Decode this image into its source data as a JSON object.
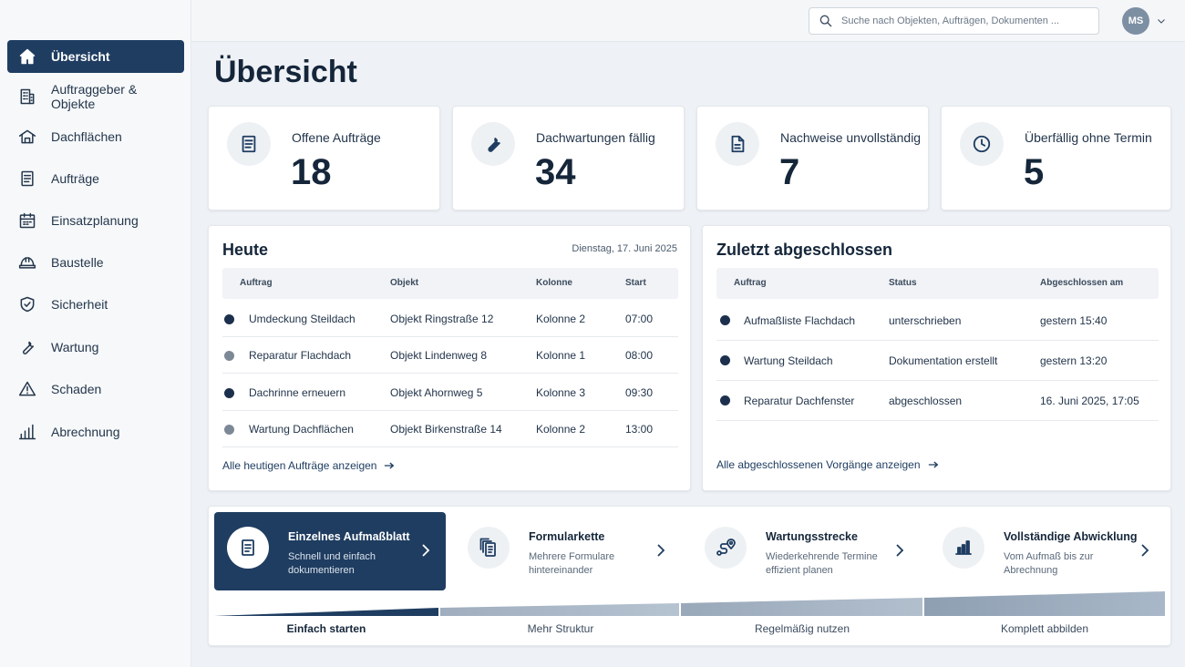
{
  "sidebar": {
    "items": [
      {
        "label": "Übersicht",
        "icon": "home-icon",
        "active": true
      },
      {
        "label": "Auftraggeber & Objekte",
        "icon": "building-icon"
      },
      {
        "label": "Dachflächen",
        "icon": "roof-icon"
      },
      {
        "label": "Aufträge",
        "icon": "document-icon"
      },
      {
        "label": "Einsatzplanung",
        "icon": "calendar-icon"
      },
      {
        "label": "Baustelle",
        "icon": "helmet-icon"
      },
      {
        "label": "Sicherheit",
        "icon": "shield-icon"
      },
      {
        "label": "Wartung",
        "icon": "wrench-icon"
      },
      {
        "label": "Schaden",
        "icon": "warning-icon"
      },
      {
        "label": "Abrechnung",
        "icon": "bar-chart-icon"
      }
    ]
  },
  "header": {
    "search_placeholder": "Suche nach Objekten, Aufträgen, Dokumenten ...",
    "user_initials": "MS"
  },
  "page": {
    "title": "Übersicht"
  },
  "kpis": [
    {
      "label": "Offene Aufträge",
      "value": "18",
      "icon": "document-icon"
    },
    {
      "label": "Dachwartungen fällig",
      "value": "34",
      "icon": "wrench-icon"
    },
    {
      "label": "Nachweise unvollständig",
      "value": "7",
      "icon": "file-icon"
    },
    {
      "label": "Überfällig ohne Termin",
      "value": "5",
      "icon": "clock-icon"
    }
  ],
  "today": {
    "title": "Heute",
    "date": "Dienstag, 17. Juni 2025",
    "columns": [
      "Auftrag",
      "Objekt",
      "Kolonne",
      "Start"
    ],
    "rows": [
      {
        "auftrag": "Umdeckung Steildach",
        "objekt": "Objekt Ringstraße 12",
        "kolonne": "Kolonne 2",
        "start": "07:00",
        "dot_color": "#1c2f4d"
      },
      {
        "auftrag": "Reparatur Flachdach",
        "objekt": "Objekt Lindenweg 8",
        "kolonne": "Kolonne 1",
        "start": "08:00",
        "dot_color": "#7d8896"
      },
      {
        "auftrag": "Dachrinne erneuern",
        "objekt": "Objekt Ahornweg 5",
        "kolonne": "Kolonne 3",
        "start": "09:30",
        "dot_color": "#1c2f4d"
      },
      {
        "auftrag": "Wartung Dachflächen",
        "objekt": "Objekt Birkenstraße 14",
        "kolonne": "Kolonne 2",
        "start": "13:00",
        "dot_color": "#7d8896"
      }
    ],
    "link": "Alle heutigen Aufträge anzeigen"
  },
  "completed": {
    "title": "Zuletzt abgeschlossen",
    "columns": [
      "Auftrag",
      "Status",
      "Abgeschlossen am"
    ],
    "rows": [
      {
        "auftrag": "Aufmaßliste Flachdach",
        "status": "unterschrieben",
        "date": "gestern 15:40",
        "dot_color": "#1c2f4d"
      },
      {
        "auftrag": "Wartung Steildach",
        "status": "Dokumentation erstellt",
        "date": "gestern 13:20",
        "dot_color": "#1c2f4d"
      },
      {
        "auftrag": "Reparatur Dachfenster",
        "status": "abgeschlossen",
        "date": "16. Juni 2025, 17:05",
        "dot_color": "#1c2f4d"
      }
    ],
    "link": "Alle abgeschlossenen Vorgänge anzeigen"
  },
  "workflow": {
    "steps": [
      {
        "title": "Einzelnes Aufmaßblatt",
        "subtitle": "Schnell und einfach dokumentieren",
        "icon": "document-icon",
        "active": true
      },
      {
        "title": "Formularkette",
        "subtitle": "Mehrere Formulare hintereinander",
        "icon": "stacked-documents-icon"
      },
      {
        "title": "Wartungsstrecke",
        "subtitle": "Wiederkehrende Termine effizient planen",
        "icon": "route-icon"
      },
      {
        "title": "Vollständige Abwicklung",
        "subtitle": "Vom Aufmaß bis zur Abrechnung",
        "icon": "bar-chart-icon"
      }
    ],
    "stages": [
      "Einfach starten",
      "Mehr Struktur",
      "Regelmäßig nutzen",
      "Komplett abbilden"
    ]
  },
  "colors": {
    "accent": "#1f3d61",
    "background": "#eef1f5"
  }
}
